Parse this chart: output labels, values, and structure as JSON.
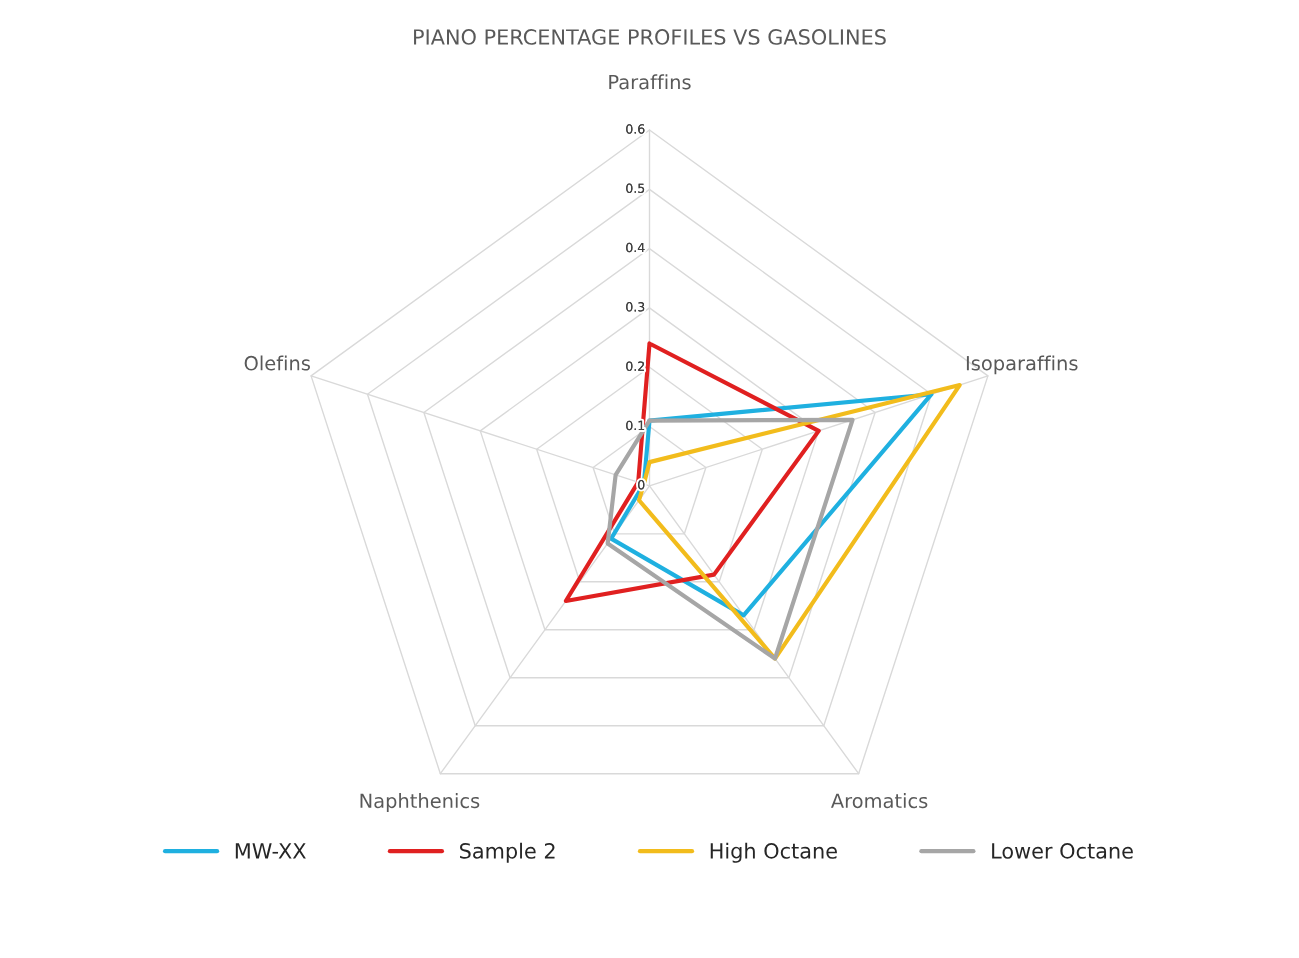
{
  "chart_data": {
    "type": "radar",
    "title": "PIANO PERCENTAGE PROFILES VS GASOLINES",
    "categories": [
      "Paraffins",
      "Isoparaffins",
      "Aromatics",
      "Naphthenics",
      "Olefins"
    ],
    "ylim": [
      0,
      0.6
    ],
    "yticks": [
      0,
      0.1,
      0.2,
      0.3,
      0.4,
      0.5,
      0.6
    ],
    "grid": true,
    "legend": "bottom",
    "marker": "none",
    "series": [
      {
        "name": "MW-XX",
        "color": "#1fb0e0",
        "values": [
          0.11,
          0.5,
          0.27,
          0.11,
          0.01
        ]
      },
      {
        "name": "Sample 2",
        "color": "#e02020",
        "values": [
          0.24,
          0.3,
          0.185,
          0.24,
          0.02
        ]
      },
      {
        "name": "High Octane",
        "color": "#f2bc1c",
        "values": [
          0.04,
          0.55,
          0.36,
          0.03,
          0.01
        ]
      },
      {
        "name": "Lower Octane",
        "color": "#a6a6a6",
        "values": [
          0.11,
          0.36,
          0.36,
          0.12,
          0.06
        ]
      }
    ]
  }
}
